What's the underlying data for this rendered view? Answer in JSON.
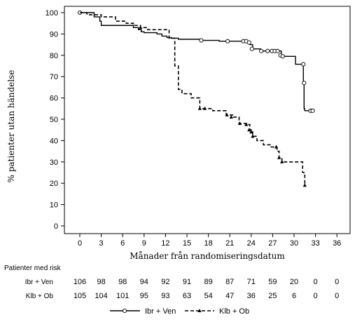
{
  "chart_data": {
    "type": "line",
    "title": "",
    "xlabel": "Månader från randomiseringsdatum",
    "ylabel": "% patienter utan händelse",
    "xlim": [
      -2,
      38
    ],
    "ylim": [
      0,
      100
    ],
    "xticks": [
      0,
      3,
      6,
      9,
      12,
      15,
      18,
      21,
      24,
      27,
      30,
      33,
      36
    ],
    "yticks": [
      0,
      10,
      20,
      30,
      40,
      50,
      60,
      70,
      80,
      90,
      100
    ],
    "grid": false,
    "legend_position": "bottom",
    "series": [
      {
        "name": "Ibr + Ven",
        "color": "#000000",
        "linestyle": "solid",
        "censor_marker": "circle",
        "x": [
          0,
          2,
          2.8,
          3,
          6.5,
          7.5,
          8.2,
          8.6,
          9,
          10.8,
          11.5,
          12.2,
          12.8,
          13.8,
          17,
          19.5,
          21,
          23,
          23.4,
          23.8,
          24.2,
          25.3,
          26.8,
          27.7,
          28.2,
          28.6,
          29.5,
          30.2,
          31.2,
          31.3,
          31.4,
          31.5,
          32.3,
          32.6
        ],
        "y": [
          100,
          98,
          96,
          94,
          94,
          93,
          92,
          91,
          90.6,
          90,
          89,
          88.3,
          88,
          87.5,
          87,
          86.6,
          86.6,
          86.6,
          86,
          85,
          83,
          82,
          82,
          82,
          80,
          79.5,
          79.5,
          75.8,
          75.8,
          67,
          55,
          54,
          54,
          54
        ],
        "censored_x": [
          0,
          17,
          20.7,
          22.9,
          23.3,
          23.7,
          24.1,
          25.4,
          26.3,
          26.9,
          27.3,
          27.7,
          28.1,
          28.4,
          31.3,
          31.4,
          32.3,
          32.6
        ],
        "censored_y": [
          100,
          87,
          86.6,
          86.6,
          86.6,
          86,
          83,
          82,
          82,
          82,
          82,
          82,
          80,
          79.5,
          75.8,
          67,
          54,
          54
        ]
      },
      {
        "name": "Klb + Ob",
        "color": "#000000",
        "linestyle": "dashed",
        "censor_marker": "triangle",
        "x": [
          0,
          1,
          3,
          5,
          6.5,
          7.5,
          8.5,
          9.5,
          11.5,
          12.5,
          13.3,
          13.8,
          14.3,
          15.6,
          16.8,
          18.6,
          20.5,
          21.5,
          22.3,
          23.5,
          23.8,
          24.2,
          24.8,
          25.7,
          26.8,
          27.6,
          27.9,
          28.3,
          31,
          31.2,
          31.5
        ],
        "y": [
          100,
          99,
          98,
          96,
          95,
          94,
          93,
          92,
          92,
          88,
          75,
          64,
          62,
          60,
          55,
          54,
          52,
          51,
          48,
          47.5,
          45,
          42,
          40,
          38,
          37,
          35,
          32,
          30,
          30,
          25,
          19
        ],
        "censored_x": [
          8.5,
          16.8,
          17.5,
          20.6,
          21.2,
          22.4,
          23.3,
          23.7,
          24.0,
          24.2,
          27.5,
          27.9,
          28.3,
          31.5
        ],
        "censored_y": [
          93,
          55,
          55,
          52,
          51,
          48,
          47.5,
          45,
          44,
          42,
          37,
          32,
          30,
          19
        ]
      }
    ],
    "risk_table": {
      "title": "Patienter med risk",
      "rows": [
        {
          "name": "Ibr + Ven",
          "values": [
            "106",
            "98",
            "98",
            "94",
            "92",
            "91",
            "89",
            "87",
            "71",
            "59",
            "20",
            "0",
            "0"
          ]
        },
        {
          "name": "Klb + Ob",
          "values": [
            "105",
            "104",
            "101",
            "95",
            "93",
            "63",
            "54",
            "47",
            "36",
            "25",
            "6",
            "0",
            "0"
          ]
        }
      ]
    }
  }
}
